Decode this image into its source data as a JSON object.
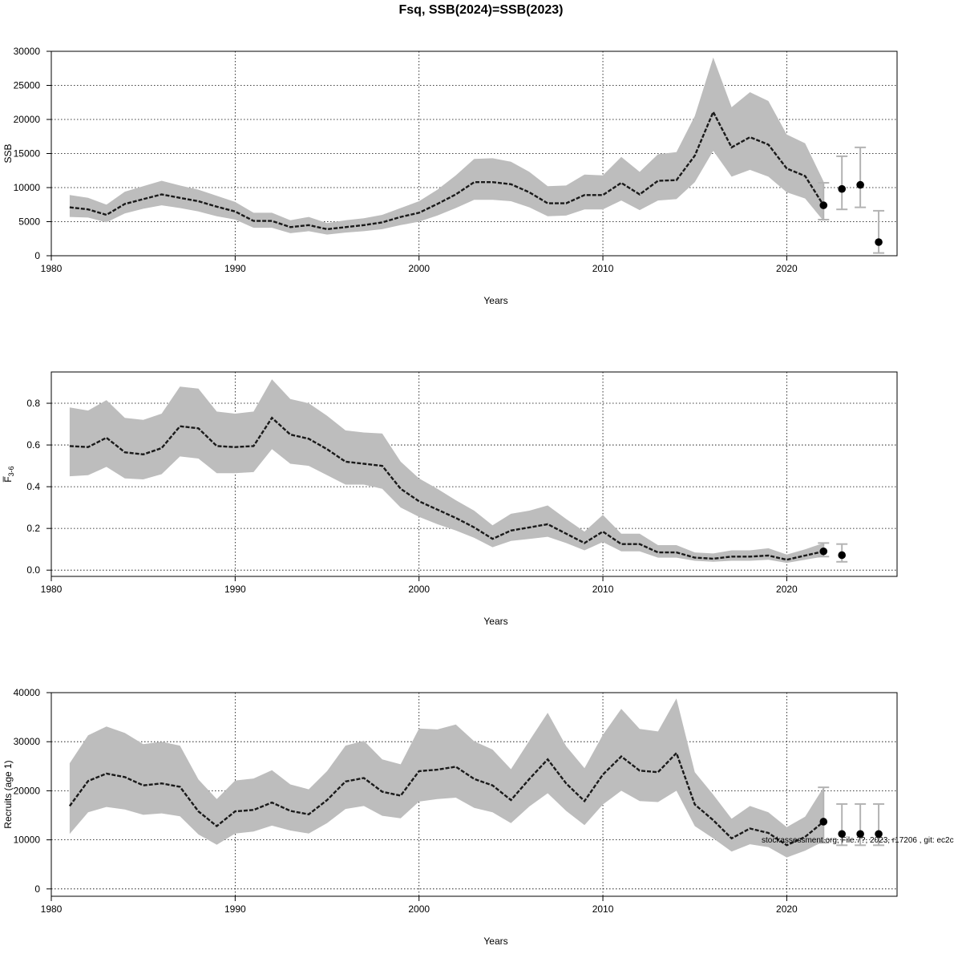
{
  "figure_title": "Fsq, SSB(2024)=SSB(2023)",
  "footer_note": "stockassessment.org, File.7?, 2023, r17206 , git: ec2c",
  "colors": {
    "band": "#bdbdbd",
    "line": "#1a1a1a",
    "errorbar": "#b3b3b3",
    "point": "#000000"
  },
  "chart_data": [
    {
      "type": "line",
      "title": "",
      "xlabel": "Years",
      "ylabel": "SSB",
      "xlim": [
        1980,
        2026
      ],
      "ylim": [
        0,
        30000
      ],
      "x_ticks": [
        "1980",
        "1990",
        "2000",
        "2010",
        "2020"
      ],
      "y_ticks": [
        "0",
        "5000",
        "10000",
        "15000",
        "20000",
        "25000",
        "30000"
      ],
      "grid": true,
      "series": [
        {
          "x": [
            1981,
            1982,
            1983,
            1984,
            1985,
            1986,
            1987,
            1988,
            1989,
            1990,
            1991,
            1992,
            1993,
            1994,
            1995,
            1996,
            1997,
            1998,
            1999,
            2000,
            2001,
            2002,
            2003,
            2004,
            2005,
            2006,
            2007,
            2008,
            2009,
            2010,
            2011,
            2012,
            2013,
            2014,
            2015,
            2016,
            2017,
            2018,
            2019,
            2020,
            2021,
            2022
          ],
          "values": [
            7100,
            6800,
            6000,
            7600,
            8300,
            9000,
            8500,
            8000,
            7200,
            6500,
            5100,
            5100,
            4200,
            4500,
            3900,
            4200,
            4500,
            4900,
            5700,
            6300,
            7600,
            9000,
            10800,
            10800,
            10500,
            9300,
            7700,
            7700,
            8900,
            8900,
            10700,
            9000,
            11000,
            11100,
            14700,
            21100,
            15900,
            17400,
            16300,
            12800,
            11700,
            7400
          ],
          "lower": [
            5700,
            5600,
            4900,
            6200,
            6900,
            7400,
            7000,
            6500,
            5800,
            5300,
            4100,
            4100,
            3300,
            3600,
            3100,
            3400,
            3600,
            3900,
            4500,
            5000,
            5900,
            7000,
            8200,
            8200,
            8000,
            7100,
            5800,
            5900,
            6800,
            6800,
            8100,
            6700,
            8100,
            8300,
            10800,
            15400,
            11600,
            12600,
            11600,
            9300,
            8400,
            5100
          ],
          "upper": [
            8900,
            8500,
            7500,
            9400,
            10200,
            11000,
            10300,
            9700,
            8800,
            7900,
            6300,
            6300,
            5200,
            5700,
            4800,
            5200,
            5500,
            6000,
            7000,
            8000,
            9700,
            11800,
            14200,
            14300,
            13800,
            12300,
            10200,
            10300,
            11900,
            11800,
            14500,
            12300,
            14900,
            15200,
            20500,
            29100,
            21800,
            24000,
            22700,
            17800,
            16500,
            10900
          ]
        }
      ],
      "forecast": {
        "x": [
          2022,
          2023,
          2024,
          2025
        ],
        "values": [
          7400,
          9800,
          10400,
          2000
        ],
        "lower": [
          5300,
          6800,
          7100,
          400
        ],
        "upper": [
          10700,
          14600,
          15900,
          6600
        ]
      }
    },
    {
      "type": "line",
      "title": "",
      "xlabel": "Years",
      "ylabel": "F̅3-6",
      "ylabel_main": "F̅",
      "ylabel_sub": "3-6",
      "xlim": [
        1980,
        2026
      ],
      "ylim": [
        -0.03,
        0.95
      ],
      "x_ticks": [
        "1980",
        "1990",
        "2000",
        "2010",
        "2020"
      ],
      "y_ticks": [
        "0.0",
        "0.2",
        "0.4",
        "0.6",
        "0.8"
      ],
      "grid": true,
      "series": [
        {
          "x": [
            1981,
            1982,
            1983,
            1984,
            1985,
            1986,
            1987,
            1988,
            1989,
            1990,
            1991,
            1992,
            1993,
            1994,
            1995,
            1996,
            1997,
            1998,
            1999,
            2000,
            2001,
            2002,
            2003,
            2004,
            2005,
            2006,
            2007,
            2008,
            2009,
            2010,
            2011,
            2012,
            2013,
            2014,
            2015,
            2016,
            2017,
            2018,
            2019,
            2020,
            2021,
            2022
          ],
          "values": [
            0.595,
            0.59,
            0.635,
            0.565,
            0.555,
            0.585,
            0.69,
            0.68,
            0.595,
            0.59,
            0.595,
            0.73,
            0.65,
            0.63,
            0.58,
            0.52,
            0.51,
            0.5,
            0.39,
            0.33,
            0.29,
            0.25,
            0.205,
            0.15,
            0.19,
            0.205,
            0.22,
            0.175,
            0.13,
            0.185,
            0.125,
            0.125,
            0.085,
            0.085,
            0.06,
            0.055,
            0.065,
            0.065,
            0.07,
            0.05,
            0.07,
            0.09
          ],
          "lower": [
            0.45,
            0.455,
            0.495,
            0.44,
            0.435,
            0.46,
            0.545,
            0.535,
            0.465,
            0.465,
            0.47,
            0.58,
            0.51,
            0.5,
            0.455,
            0.41,
            0.41,
            0.39,
            0.3,
            0.255,
            0.22,
            0.19,
            0.155,
            0.11,
            0.14,
            0.15,
            0.16,
            0.13,
            0.095,
            0.135,
            0.09,
            0.09,
            0.06,
            0.06,
            0.045,
            0.04,
            0.045,
            0.045,
            0.05,
            0.035,
            0.05,
            0.065
          ],
          "upper": [
            0.78,
            0.765,
            0.815,
            0.73,
            0.72,
            0.75,
            0.88,
            0.87,
            0.76,
            0.75,
            0.76,
            0.915,
            0.82,
            0.8,
            0.74,
            0.67,
            0.66,
            0.655,
            0.52,
            0.44,
            0.39,
            0.335,
            0.285,
            0.215,
            0.27,
            0.285,
            0.31,
            0.245,
            0.185,
            0.265,
            0.175,
            0.175,
            0.12,
            0.12,
            0.085,
            0.08,
            0.095,
            0.095,
            0.105,
            0.075,
            0.1,
            0.13
          ]
        }
      ],
      "forecast": {
        "x": [
          2022,
          2023
        ],
        "values": [
          0.09,
          0.072
        ],
        "lower": [
          0.065,
          0.04
        ],
        "upper": [
          0.13,
          0.125
        ]
      }
    },
    {
      "type": "line",
      "title": "",
      "xlabel": "Years",
      "ylabel": "Recruits (age 1)",
      "xlim": [
        1980,
        2026
      ],
      "ylim": [
        -1500,
        40000
      ],
      "x_ticks": [
        "1980",
        "1990",
        "2000",
        "2010",
        "2020"
      ],
      "y_ticks": [
        "0",
        "10000",
        "20000",
        "30000",
        "40000"
      ],
      "grid": true,
      "series": [
        {
          "x": [
            1981,
            1982,
            1983,
            1984,
            1985,
            1986,
            1987,
            1988,
            1989,
            1990,
            1991,
            1992,
            1993,
            1994,
            1995,
            1996,
            1997,
            1998,
            1999,
            2000,
            2001,
            2002,
            2003,
            2004,
            2005,
            2006,
            2007,
            2008,
            2009,
            2010,
            2011,
            2012,
            2013,
            2014,
            2015,
            2016,
            2017,
            2018,
            2019,
            2020,
            2021,
            2022
          ],
          "values": [
            16900,
            22000,
            23500,
            22800,
            21100,
            21500,
            20800,
            15800,
            12800,
            15800,
            16100,
            17600,
            15900,
            15200,
            18100,
            21900,
            22600,
            19800,
            19000,
            24000,
            24300,
            24900,
            22400,
            21100,
            18100,
            22400,
            26400,
            21500,
            17900,
            23300,
            27000,
            24100,
            23800,
            27700,
            17200,
            14000,
            10300,
            12300,
            11400,
            8900,
            10600,
            13700
          ],
          "lower": [
            11200,
            15600,
            16700,
            16200,
            15100,
            15400,
            14800,
            11100,
            9000,
            11300,
            11700,
            12900,
            11900,
            11300,
            13400,
            16300,
            16900,
            14900,
            14400,
            17800,
            18300,
            18600,
            16500,
            15600,
            13400,
            16800,
            19500,
            15900,
            13000,
            17200,
            20000,
            17900,
            17700,
            20000,
            12800,
            10300,
            7600,
            9100,
            8500,
            6400,
            7800,
            9700
          ],
          "upper": [
            25600,
            31300,
            33100,
            31800,
            29500,
            30000,
            29200,
            22300,
            18300,
            22100,
            22500,
            24200,
            21300,
            20300,
            24000,
            29200,
            30200,
            26400,
            25400,
            32700,
            32500,
            33500,
            30100,
            28400,
            24400,
            30200,
            35900,
            29100,
            24600,
            31400,
            36700,
            32600,
            32100,
            38800,
            23800,
            19200,
            14300,
            16900,
            15600,
            12600,
            14700,
            20700
          ]
        }
      ],
      "forecast": {
        "x": [
          2022,
          2023,
          2024,
          2025
        ],
        "values": [
          13700,
          11200,
          11200,
          11200
        ],
        "lower": [
          9400,
          8900,
          8900,
          8900
        ],
        "upper": [
          20700,
          17300,
          17300,
          17300
        ]
      }
    }
  ]
}
